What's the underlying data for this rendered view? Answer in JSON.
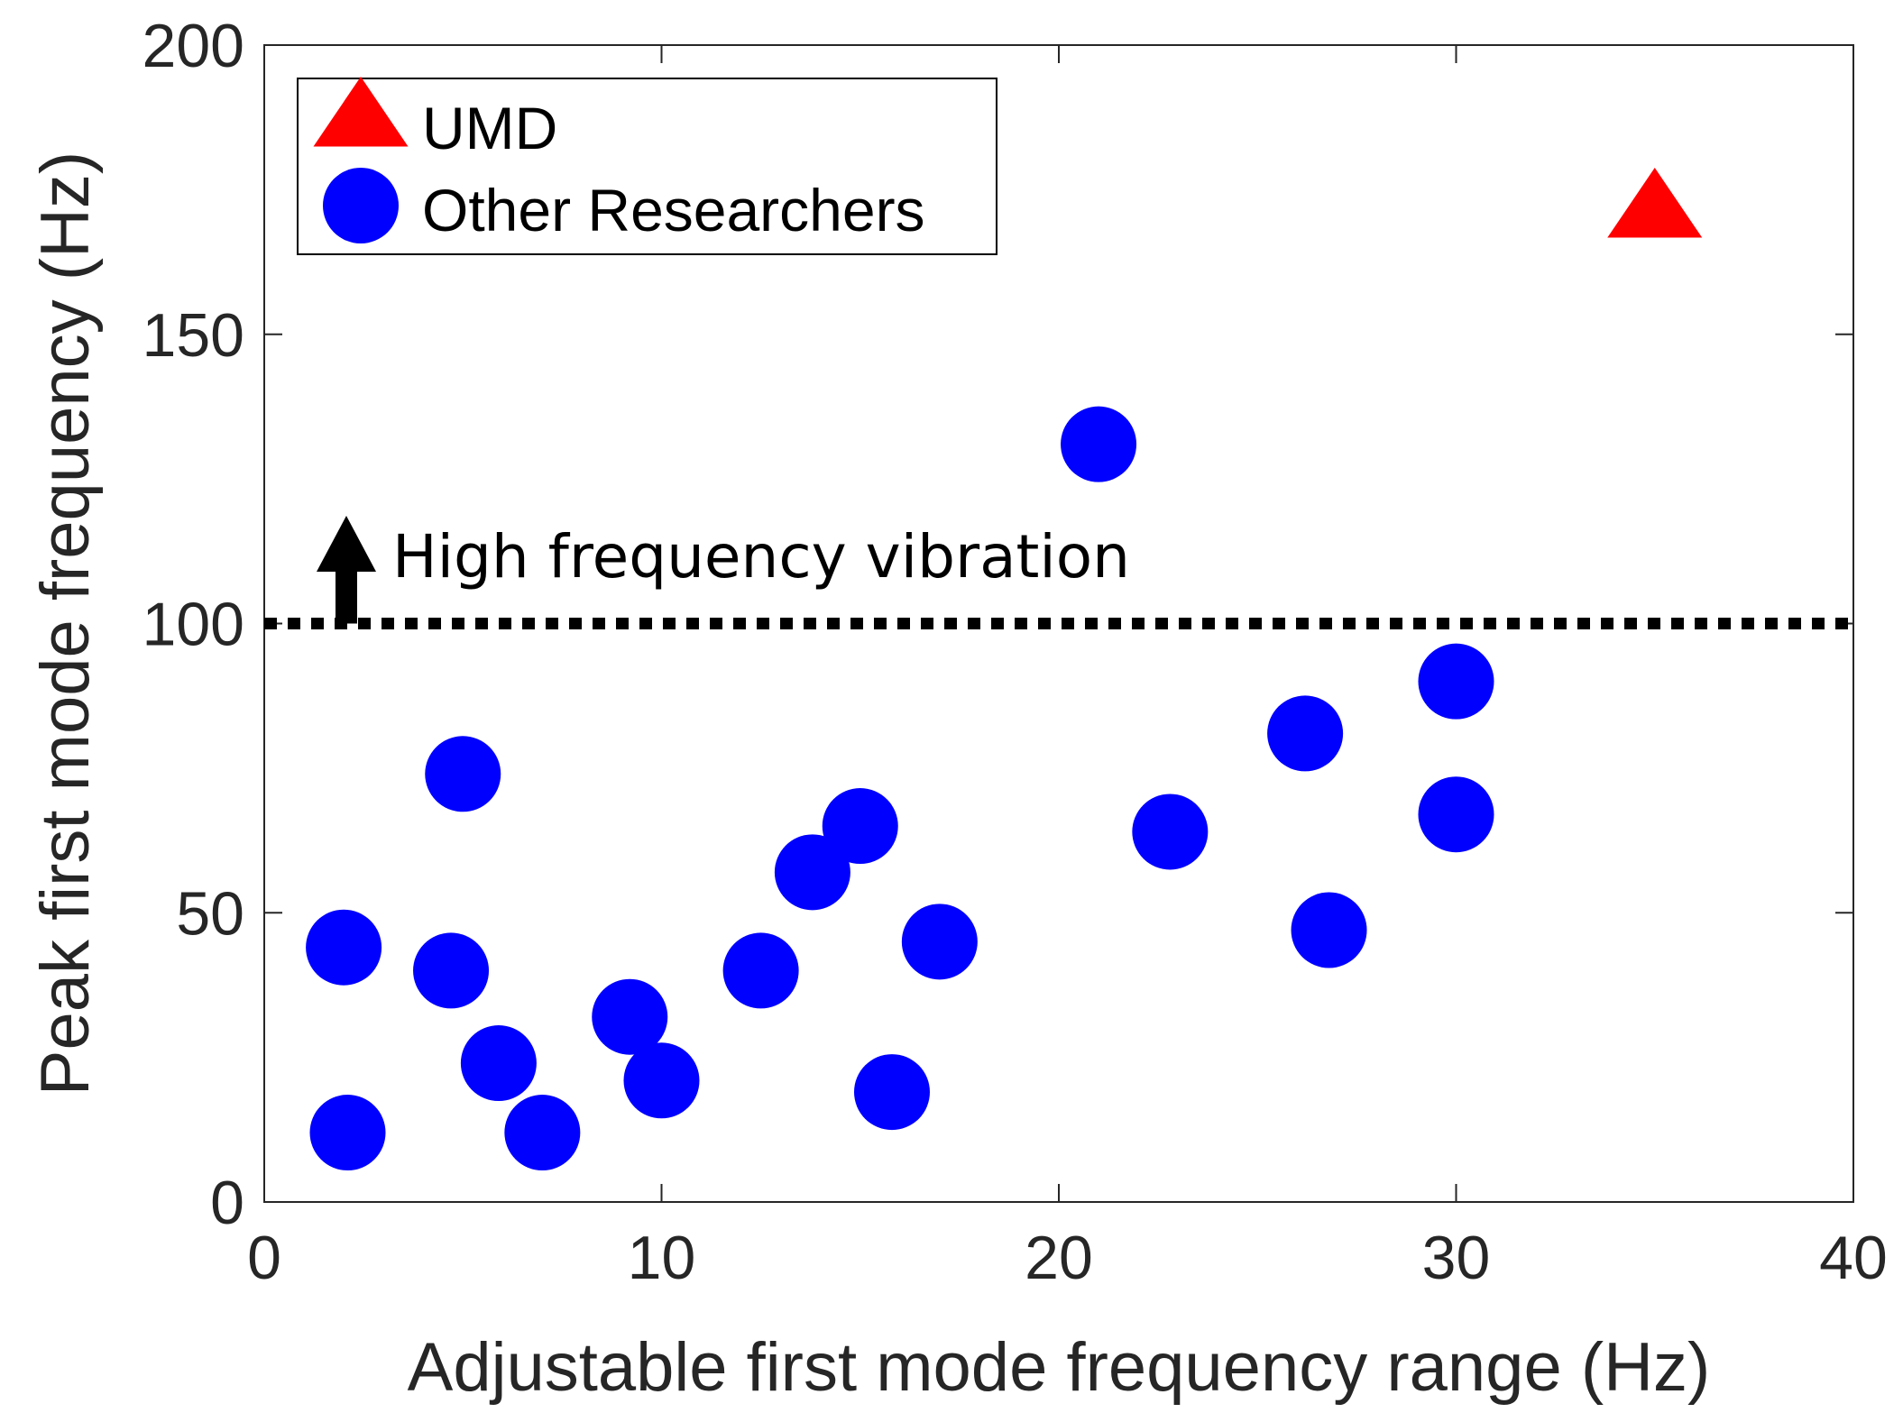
{
  "chart_data": {
    "type": "scatter",
    "xlabel": "Adjustable first mode frequency range (Hz)",
    "ylabel": "Peak first mode frequency (Hz)",
    "xlim": [
      0,
      40
    ],
    "ylim": [
      0,
      200
    ],
    "xticks": [
      "0",
      "10",
      "20",
      "30",
      "40"
    ],
    "yticks": [
      "0",
      "50",
      "100",
      "150",
      "200"
    ],
    "grid": false,
    "legend_position": "top-left",
    "series": [
      {
        "name": "UMD",
        "marker": "triangle",
        "color": "#ff0000",
        "points": [
          {
            "x": 35,
            "y": 171
          }
        ]
      },
      {
        "name": "Other Researchers",
        "marker": "circle",
        "color": "#0000ff",
        "points": [
          {
            "x": 2.0,
            "y": 44
          },
          {
            "x": 2.1,
            "y": 12
          },
          {
            "x": 4.7,
            "y": 40
          },
          {
            "x": 5.0,
            "y": 74
          },
          {
            "x": 5.9,
            "y": 24
          },
          {
            "x": 7.0,
            "y": 12
          },
          {
            "x": 9.2,
            "y": 32
          },
          {
            "x": 10.0,
            "y": 21
          },
          {
            "x": 12.5,
            "y": 40
          },
          {
            "x": 13.8,
            "y": 57
          },
          {
            "x": 15.0,
            "y": 65
          },
          {
            "x": 15.8,
            "y": 19
          },
          {
            "x": 17.0,
            "y": 45
          },
          {
            "x": 21.0,
            "y": 131
          },
          {
            "x": 22.8,
            "y": 64
          },
          {
            "x": 26.2,
            "y": 81
          },
          {
            "x": 26.8,
            "y": 47
          },
          {
            "x": 30.0,
            "y": 90
          },
          {
            "x": 30.0,
            "y": 67
          }
        ]
      }
    ],
    "reference_line": {
      "y": 100,
      "style": "dotted",
      "color": "#000000"
    },
    "annotation": {
      "text": "High frequency vibration",
      "arrow": "up"
    }
  }
}
